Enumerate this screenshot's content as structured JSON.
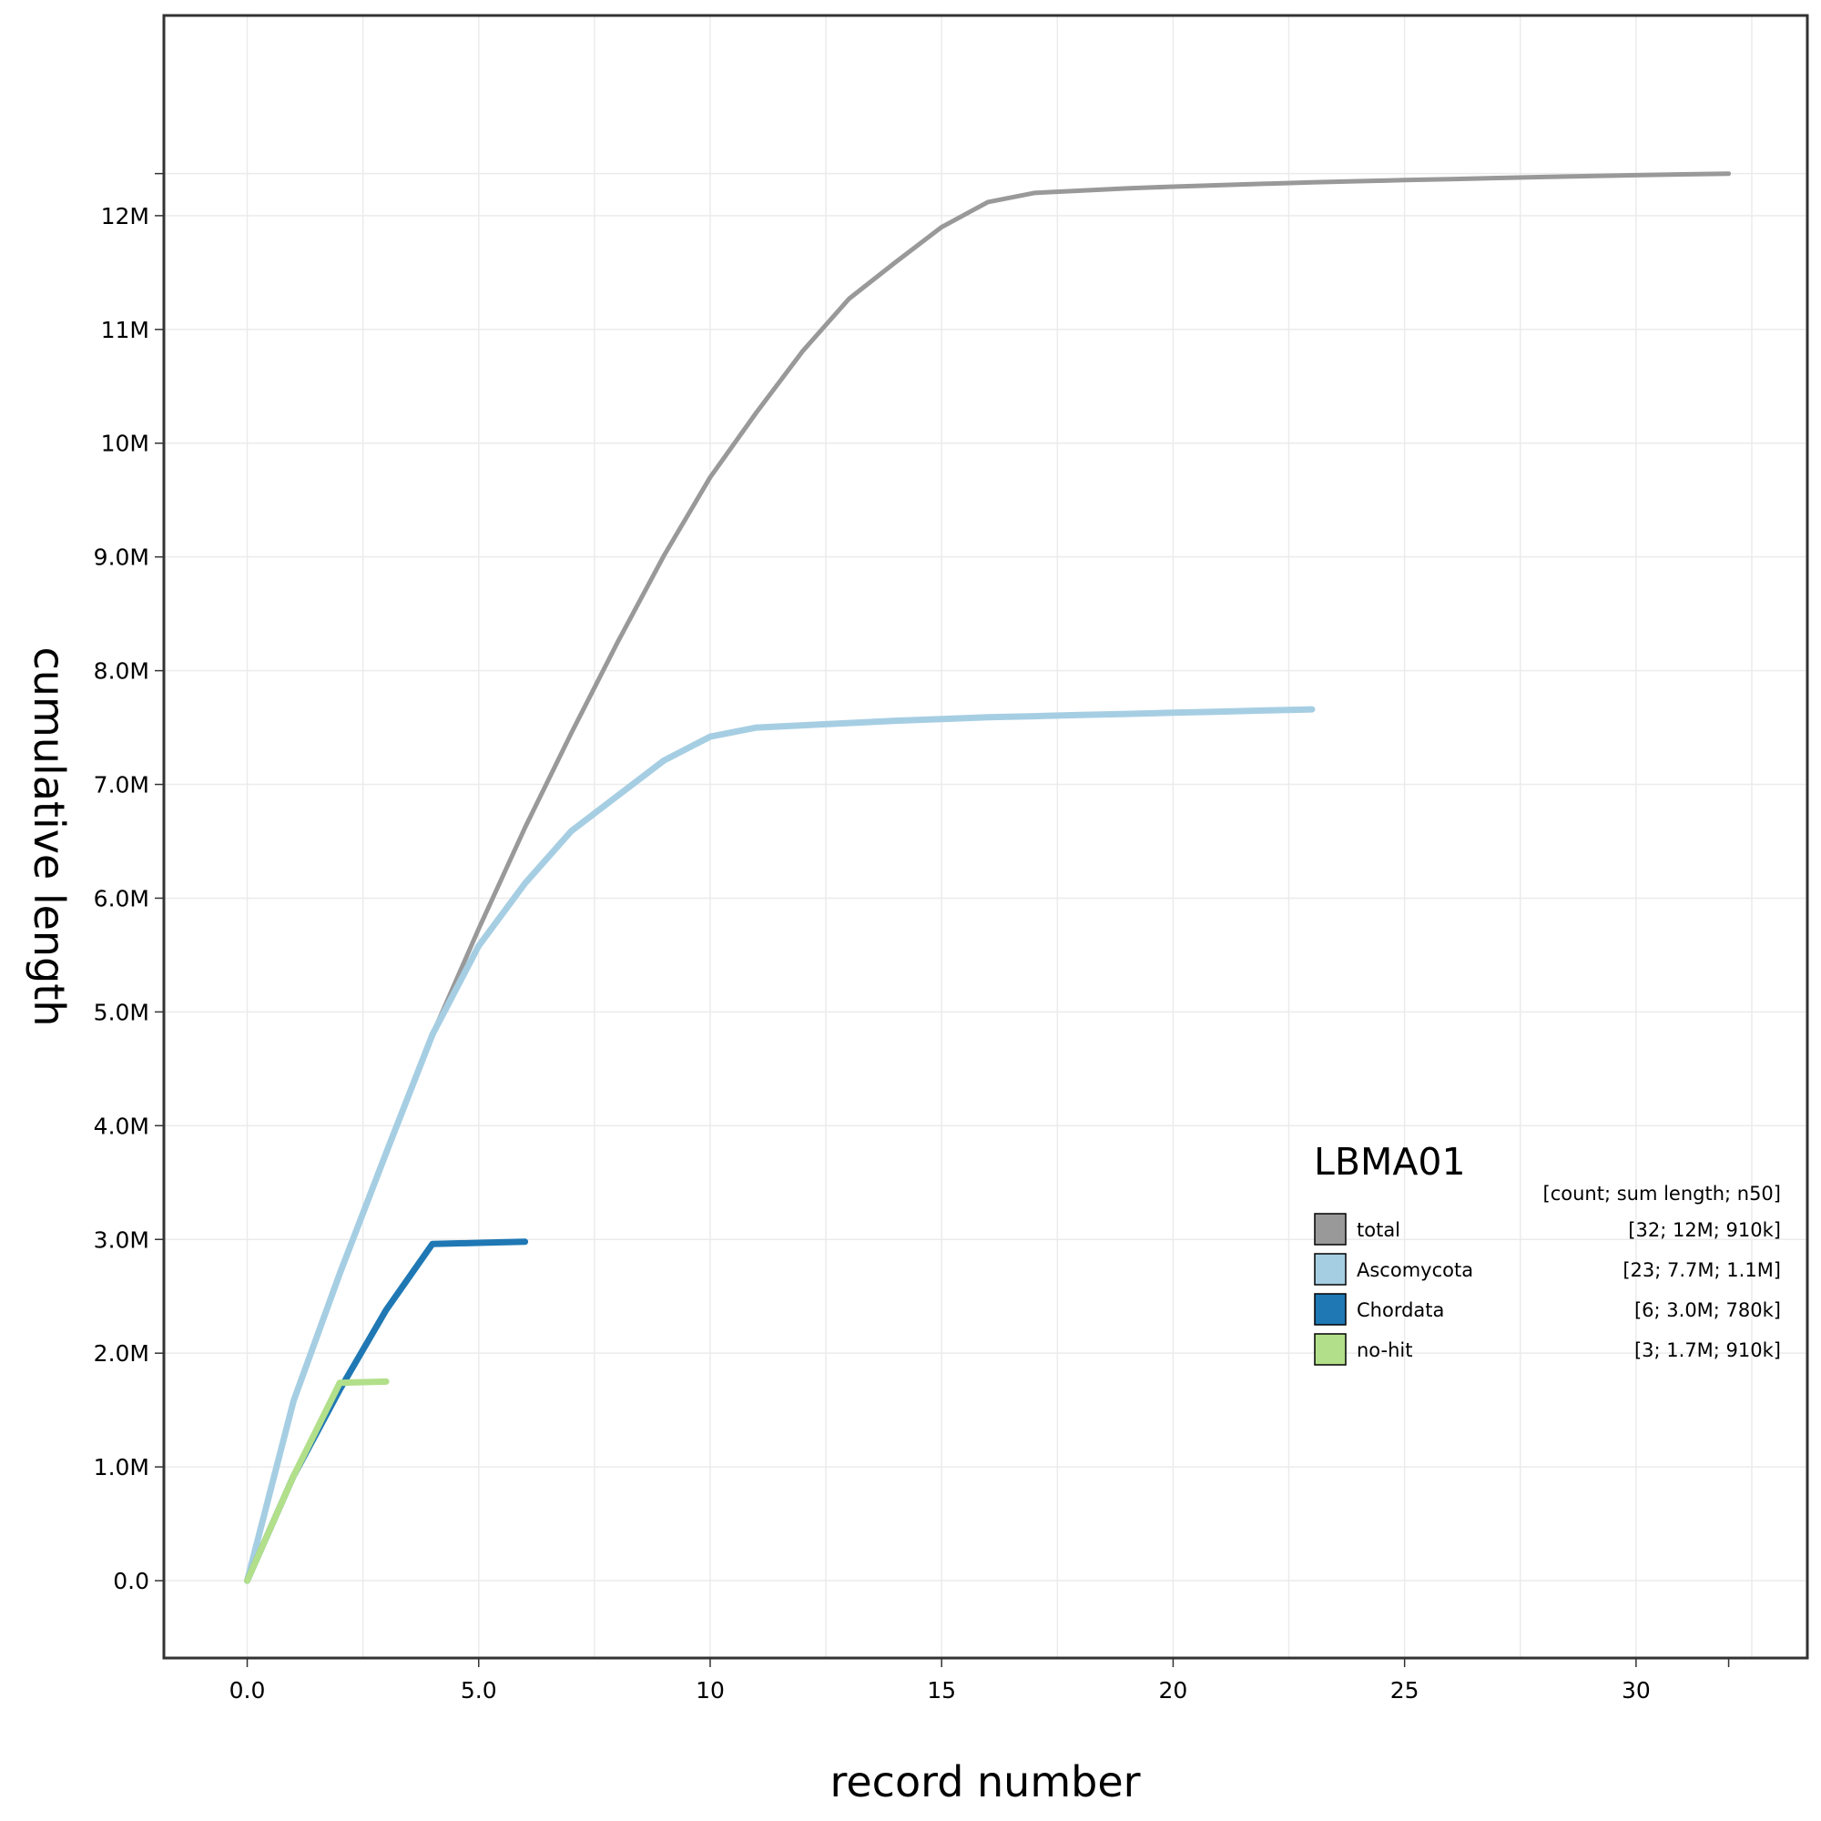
{
  "chart_data": {
    "type": "line",
    "title": "",
    "xlabel": "record number",
    "ylabel": "cumulative length",
    "xlim": [
      -1.8,
      33.7
    ],
    "ylim": [
      -680000,
      13760000
    ],
    "x_ticks": [
      {
        "value": 0,
        "label": "0.0"
      },
      {
        "value": 5,
        "label": "5.0"
      },
      {
        "value": 10,
        "label": "10"
      },
      {
        "value": 15,
        "label": "15"
      },
      {
        "value": 20,
        "label": "20"
      },
      {
        "value": 25,
        "label": "25"
      },
      {
        "value": 30,
        "label": "30"
      },
      {
        "value": 32,
        "label": ""
      }
    ],
    "y_ticks": [
      {
        "value": 0,
        "label": "0.0"
      },
      {
        "value": 1000000,
        "label": "1.0M"
      },
      {
        "value": 2000000,
        "label": "2.0M"
      },
      {
        "value": 3000000,
        "label": "3.0M"
      },
      {
        "value": 4000000,
        "label": "4.0M"
      },
      {
        "value": 5000000,
        "label": "5.0M"
      },
      {
        "value": 6000000,
        "label": "6.0M"
      },
      {
        "value": 7000000,
        "label": "7.0M"
      },
      {
        "value": 8000000,
        "label": "8.0M"
      },
      {
        "value": 9000000,
        "label": "9.0M"
      },
      {
        "value": 10000000,
        "label": "10M"
      },
      {
        "value": 11000000,
        "label": "11M"
      },
      {
        "value": 12000000,
        "label": "12M"
      },
      {
        "value": 12370000,
        "label": ""
      }
    ],
    "grid": true,
    "legend": {
      "title": "LBMA01",
      "subtitle": "[count; sum length; n50]",
      "placement": "bottom-right"
    },
    "series": [
      {
        "name": "total",
        "stats": "[32; 12M; 910k]",
        "color": "#999999",
        "x": [
          0,
          1,
          2,
          3,
          4,
          5,
          6,
          7,
          8,
          9,
          10,
          11,
          12,
          13,
          14,
          15,
          16,
          17,
          18,
          19,
          20,
          21,
          22,
          23,
          24,
          25,
          26,
          27,
          28,
          29,
          30,
          31,
          32
        ],
        "y": [
          0,
          1580000,
          2700000,
          3760000,
          4800000,
          5730000,
          6620000,
          7450000,
          8250000,
          9010000,
          9700000,
          10270000,
          10810000,
          11270000,
          11590000,
          11900000,
          12120000,
          12200000,
          12220000,
          12240000,
          12255000,
          12268000,
          12281000,
          12293000,
          12303000,
          12313000,
          12322000,
          12331000,
          12340000,
          12348000,
          12356000,
          12363000,
          12370000
        ]
      },
      {
        "name": "Ascomycota",
        "stats": "[23; 7.7M; 1.1M]",
        "color": "#a6cee3",
        "x": [
          0,
          1,
          2,
          3,
          4,
          5,
          6,
          7,
          8,
          9,
          10,
          11,
          12,
          13,
          14,
          15,
          16,
          17,
          18,
          19,
          20,
          21,
          22,
          23
        ],
        "y": [
          0,
          1580000,
          2700000,
          3760000,
          4800000,
          5580000,
          6130000,
          6590000,
          6900000,
          7210000,
          7420000,
          7500000,
          7520000,
          7540000,
          7560000,
          7575000,
          7590000,
          7600000,
          7610000,
          7620000,
          7630000,
          7640000,
          7650000,
          7660000
        ]
      },
      {
        "name": "Chordata",
        "stats": "[6; 3.0M; 780k]",
        "color": "#1f78b4",
        "x": [
          0,
          1,
          2,
          3,
          4,
          5,
          6
        ],
        "y": [
          0,
          920000,
          1680000,
          2380000,
          2960000,
          2970000,
          2980000
        ]
      },
      {
        "name": "no-hit",
        "stats": "[3; 1.7M; 910k]",
        "color": "#b2df8a",
        "x": [
          0,
          1,
          2,
          3
        ],
        "y": [
          0,
          920000,
          1740000,
          1750000
        ]
      }
    ]
  }
}
